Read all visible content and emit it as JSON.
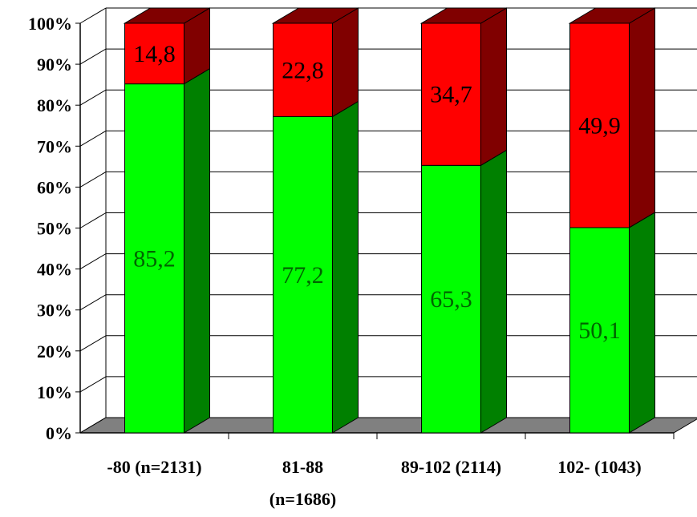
{
  "chart_data": {
    "type": "bar",
    "stacked": true,
    "percent": true,
    "three_d": true,
    "categories": [
      {
        "line1": "-80 (n=2131)",
        "line2": ""
      },
      {
        "line1": "81-88",
        "line2": "(n=1686)"
      },
      {
        "line1": "89-102 (2114)",
        "line2": ""
      },
      {
        "line1": "102- (1043)",
        "line2": ""
      }
    ],
    "series": [
      {
        "values": [
          85.2,
          77.2,
          65.3,
          50.1
        ],
        "labels": [
          "85,2",
          "77,2",
          "65,3",
          "50,1"
        ],
        "color": "#00ff00",
        "side_color": "#008000",
        "label_color": "#006400"
      },
      {
        "values": [
          14.8,
          22.8,
          34.7,
          49.9
        ],
        "labels": [
          "14,8",
          "22,8",
          "34,7",
          "49,9"
        ],
        "color": "#ff0000",
        "side_color": "#800000",
        "label_color": "#000000"
      }
    ],
    "yticks": [
      "0%",
      "10%",
      "20%",
      "30%",
      "40%",
      "50%",
      "60%",
      "70%",
      "80%",
      "90%",
      "100%"
    ],
    "ylim": [
      0,
      100
    ],
    "grid": true,
    "floor_color": "#808080"
  }
}
